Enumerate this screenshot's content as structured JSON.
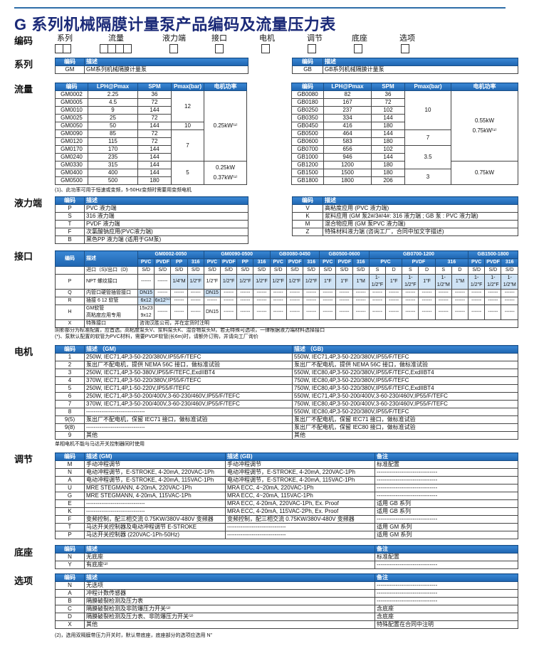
{
  "title": "G 系列机械隔膜计量泵产品编码及流量压力表",
  "code_row": {
    "label": "编码",
    "fields": [
      {
        "label": "系列",
        "boxes": 2
      },
      {
        "label": "流量",
        "boxes": 4
      },
      {
        "label": "液力端",
        "boxes": 1
      },
      {
        "label": "接口",
        "boxes": 1
      },
      {
        "label": "电机",
        "boxes": 1
      },
      {
        "label": "调节",
        "boxes": 1
      },
      {
        "label": "底座",
        "boxes": 1
      },
      {
        "label": "选项",
        "boxes": 1
      }
    ]
  },
  "series": {
    "label": "系列",
    "left": {
      "headers": [
        "编码",
        "描述"
      ],
      "rows": [
        [
          "GM",
          "GM系列机械隔膜计量泵"
        ]
      ]
    },
    "right": {
      "headers": [
        "编码",
        "描述"
      ],
      "rows": [
        [
          "GB",
          "GB系列机械隔膜计量泵"
        ]
      ]
    }
  },
  "flow": {
    "label": "流量",
    "headers": [
      "编码",
      "LPH@Pmax",
      "SPM",
      "Pmax(bar)",
      "电机功率"
    ],
    "gm": {
      "rows": [
        [
          "GM0002",
          "2.25",
          "36"
        ],
        [
          "GM0005",
          "4.5",
          "72"
        ],
        [
          "GM0010",
          "9",
          "144"
        ],
        [
          "GM0025",
          "25",
          "72"
        ],
        [
          "GM0050",
          "50",
          "144"
        ],
        [
          "GM0090",
          "85",
          "72"
        ],
        [
          "GM0120",
          "115",
          "72"
        ],
        [
          "GM0170",
          "170",
          "144"
        ],
        [
          "GM0240",
          "235",
          "144"
        ],
        [
          "GM0330",
          "315",
          "144"
        ],
        [
          "GM0400",
          "400",
          "144"
        ],
        [
          "GM0500",
          "500",
          "180"
        ]
      ],
      "pmax_groups": [
        {
          "value": "12",
          "span": 4
        },
        {
          "value": "10",
          "span": 1
        },
        {
          "value": "7",
          "span": 4
        },
        {
          "value": "5",
          "span": 3
        }
      ],
      "power_groups": [
        {
          "lines": [
            "0.25kW⁽¹⁾"
          ],
          "span": 9
        },
        {
          "lines": [
            "0.25kW",
            "0.37kW⁽¹⁾"
          ],
          "span": 3
        }
      ]
    },
    "gb": {
      "rows": [
        [
          "GB0080",
          "82",
          "36"
        ],
        [
          "GB0180",
          "167",
          "72"
        ],
        [
          "GB0250",
          "237",
          "102"
        ],
        [
          "GB0350",
          "334",
          "144"
        ],
        [
          "GB0450",
          "416",
          "180"
        ],
        [
          "GB0500",
          "464",
          "144"
        ],
        [
          "GB0600",
          "583",
          "180"
        ],
        [
          "GB0700",
          "656",
          "102"
        ],
        [
          "GB1000",
          "946",
          "144"
        ],
        [
          "GB1200",
          "1200",
          "180"
        ],
        [
          "GB1500",
          "1500",
          "180"
        ],
        [
          "GB1800",
          "1800",
          "206"
        ]
      ],
      "pmax_groups": [
        {
          "value": "10",
          "span": 5
        },
        {
          "value": "7",
          "span": 2
        },
        {
          "value": "3.5",
          "span": 3
        },
        {
          "value": "3",
          "span": 2
        }
      ],
      "power_groups": [
        {
          "lines": [
            "0.55kW",
            "0.75kW⁽¹⁾"
          ],
          "span": 9
        },
        {
          "lines": [
            "0.75kW"
          ],
          "span": 3
        }
      ]
    },
    "footnote": "(1)、此功率可用于恒速或变频，5-50Hz变频时需要用变频电机"
  },
  "liquid_end": {
    "label": "液力端",
    "left": {
      "headers": [
        "编码",
        "描述"
      ],
      "rows": [
        [
          "P",
          "PVC 液力端"
        ],
        [
          "S",
          "316 液力端"
        ],
        [
          "T",
          "PVDF 液力端"
        ],
        [
          "F",
          "次氯酸钠应用(PVC液力端)"
        ],
        [
          "B",
          "黑色PP 液力端 (适用于GM泵)"
        ]
      ]
    },
    "right": {
      "headers": [
        "编码",
        "描述"
      ],
      "rows": [
        [
          "V",
          "高粘度应用 (PVC 液力端)"
        ],
        [
          "K",
          "浆料应用 (GM 泵2#/3#/4#: 316 液力端 ; GB 泵 : PVC 液力端)"
        ],
        [
          "M",
          "混合物应用 (GM 泵PVC 液力端)"
        ],
        [
          "Z",
          "特殊材料液力端 (咨询工厂，合同中加文字描述)"
        ]
      ]
    }
  },
  "connection": {
    "label": "接口",
    "headers": [
      "编码",
      "描述"
    ],
    "groups": [
      {
        "name": "GM0002-0050",
        "materials": [
          {
            "name": "PVC",
            "span": 1
          },
          {
            "name": "PVDF",
            "span": 1
          },
          {
            "name": "PP",
            "span": 1
          },
          {
            "name": "316",
            "span": 1
          }
        ]
      },
      {
        "name": "GM0090-0500",
        "materials": [
          {
            "name": "PVC",
            "span": 1
          },
          {
            "name": "PVDF",
            "span": 1
          },
          {
            "name": "PP",
            "span": 1
          },
          {
            "name": "316",
            "span": 1
          }
        ]
      },
      {
        "name": "GB0080-0450",
        "materials": [
          {
            "name": "PVC",
            "span": 1
          },
          {
            "name": "PVDF",
            "span": 1
          },
          {
            "name": "316",
            "span": 1
          }
        ]
      },
      {
        "name": "GB0500-0600",
        "materials": [
          {
            "name": "PVC",
            "span": 1
          },
          {
            "name": "PVDF",
            "span": 1
          },
          {
            "name": "316",
            "span": 1
          }
        ]
      },
      {
        "name": "GB0700-1200",
        "materials": [
          {
            "name": "PVC",
            "span": 2
          },
          {
            "name": "PVDF",
            "span": 2
          },
          {
            "name": "316",
            "span": 2
          }
        ]
      },
      {
        "name": "GB1500-1800",
        "materials": [
          {
            "name": "PVC",
            "span": 1
          },
          {
            "name": "PVDF",
            "span": 1
          },
          {
            "name": "316",
            "span": 1
          }
        ]
      }
    ],
    "rows": [
      {
        "code": "",
        "desc": "进口（S)/出口（D)",
        "values": [
          "S/D",
          "S/D",
          "S/D",
          "S/D",
          "S/D",
          "S/D",
          "S/D",
          "S/D",
          "S/D",
          "S/D",
          "S/D",
          "S/D",
          "S/D",
          "S/D",
          "S",
          "D",
          "S",
          "D",
          "S",
          "D",
          "S/D",
          "S/D",
          "S/D"
        ],
        "standard": []
      },
      {
        "code": "P",
        "desc": "NPT 螺纹接口",
        "values": [
          "------",
          "------",
          "1/4\"M",
          "1/2\"F",
          "1/2\"F",
          "1/2\"F",
          "1/2\"F",
          "1/2\"F",
          "1/2\"F",
          "1/2\"F",
          "1/2\"F",
          "1\"F",
          "1\"F",
          "1\"M",
          "1-1/2\"F",
          "1\"F",
          "1-1/2\"F",
          "1\"F",
          "1-1/2\"M",
          "1\"M",
          "1-1/2\"F",
          "1-1/2\"F",
          "1-1/2\"M"
        ],
        "standard": [
          2,
          3,
          5,
          6,
          7,
          8,
          9,
          10,
          11,
          12,
          13,
          14,
          15,
          16,
          17,
          18,
          19,
          20,
          21,
          22
        ]
      },
      {
        "code": "Q",
        "desc": "内管口硬管插管接口",
        "values": [
          "DN15",
          "------",
          "------",
          "------",
          "DN15",
          "------",
          "------",
          "------",
          "------",
          "------",
          "------",
          "------",
          "------",
          "------",
          "------",
          "------",
          "------",
          "------",
          "------",
          "------",
          "------",
          "------",
          "------"
        ],
        "standard": [
          0,
          4
        ]
      },
      {
        "code": "R",
        "desc": "插接 6   12 软管",
        "values": [
          "6x12",
          "6x12⁽*⁾",
          "------",
          "------",
          "------",
          "------",
          "------",
          "------",
          "------",
          "------",
          "------",
          "------",
          "------",
          "------",
          "------",
          "------",
          "------",
          "------",
          "------",
          "------",
          "------",
          "------",
          "------"
        ],
        "standard": [
          0,
          1
        ]
      },
      {
        "code": "H",
        "desc": "GM软管\n高粘度应用专用",
        "values": [
          "15x23\n9x12",
          "------",
          "------",
          "------",
          "DN15",
          "------",
          "------",
          "------",
          "------",
          "------",
          "------",
          "------",
          "------",
          "------",
          "------",
          "------",
          "------",
          "------",
          "------",
          "------",
          "------",
          "------",
          "------"
        ],
        "standard": []
      },
      {
        "code": "X",
        "desc": "特殊接口",
        "span_text": "咨询汉胜公司，并在定货时注明",
        "standard": []
      }
    ],
    "note1": "阴影部分为标准配置，应首选。高粘度泵头V、浆料泵头K、混合物泵头M，若无特殊可选项，一律根据液力端材料选择接口",
    "note2": "(*)、泵默认配置的软管为PVC材料，需要PVDF软管(长6m)时，请额外订购，并请向工厂询价"
  },
  "motor": {
    "label": "电机",
    "headers": [
      "编码",
      "描述 （GM)",
      "描述 （GB)"
    ],
    "rows": [
      [
        "1",
        "250W, IEC71,4P,3-50-220/380V,IP55/F/TEFC",
        "550W, IEC71,4P,3-50-220/380V,IP55/F/TEFC"
      ],
      [
        "2",
        "泵出厂不配电机，提供 NEMA 56C 接口，做标准试验",
        "泵出厂不配电机，提供 NEMA 56C 接口，做标准试验"
      ],
      [
        "3",
        "250W, IEC71,4P,3-50-380V,IP55/F/TEFC,ExdIIBT4",
        "550W, IEC80,4P,3-50-220/380V,IP55/F/TEFC,ExdIIBT4"
      ],
      [
        "4",
        "370W, IEC71,4P,3-50-220/380V,IP55/F/TEFC",
        "750W, IEC80,4P,3-50-220/380V,IP55/F/TEFC"
      ],
      [
        "5",
        "250W, IEC71,4P,1-50-220V,IP55/F/TEFC",
        "750W, IEC80,4P,3-50-220/380V,IP55/F/TEFC,ExdIIBT4"
      ],
      [
        "6",
        "250W, IEC71,4P,3-50-200/400V,3-60-230/460V,IP55/F/TEFC",
        "550W, IEC71,4P,3-50-200/400V,3-60-230/460V,IP55/F/TEFC"
      ],
      [
        "7",
        "370W, IEC71,4P,3-50-200/400V,3-60-230/460V,IP55/F/TEFC",
        "750W, IEC80,4P,3-50-200/400V,3-60-230/460V,IP55/F/TEFC"
      ],
      [
        "8",
        "-------------------------------",
        "550W, IEC80,4P,3-50-220/380V,IP55/F/TEFC"
      ],
      [
        "9(5)",
        "泵出厂不配电机，保留 IEC71 接口，做标准试验",
        "泵出厂不配电机，保留 IEC71 接口，做标准试验"
      ],
      [
        "9(8)",
        "-------------------------------",
        "泵出厂不配电机，保留 IEC80 接口，做标准试验"
      ],
      [
        "9",
        "其他",
        "其他"
      ]
    ],
    "note": "单相电机不能与马达开关控制器同时使用"
  },
  "regulation": {
    "label": "调节",
    "headers": [
      "编码",
      "描述 (GM)",
      "描述 (GB)",
      "备注"
    ],
    "rows": [
      [
        "M",
        "手动冲程调节",
        "手动冲程调节",
        "标准配置"
      ],
      [
        "N",
        "电动冲程调节，E-STROKE, 4-20mA, 220VAC-1Ph",
        "电动冲程调节，E-STROKE, 4-20mA, 220VAC-1Ph",
        "--------------------------------"
      ],
      [
        "A",
        "电动冲程调节，E-STROKE, 4-20mA, 115VAC-1Ph",
        "电动冲程调节，E-STROKE, 4-20mA, 115VAC-1Ph",
        "--------------------------------"
      ],
      [
        "U",
        "MRE STEGMANN, 4-20mA, 220VAC-1Ph",
        "MRA ECC, 4~20mA, 220VAC-1Ph",
        "--------------------------------"
      ],
      [
        "G",
        "MRE STEGMANN, 4-20mA, 115VAC-1Ph",
        "MRA ECC, 4~20mA, 115VAC-1Ph",
        "--------------------------------"
      ],
      [
        "E",
        "-------------------------------",
        "MRA ECC, 4-20mA, 220VAC-1Ph, Ex. Proof",
        "适用 GB 系列"
      ],
      [
        "K",
        "-------------------------------",
        "MRA ECC, 4-20mA, 115VAC-2Ph, Ex. Proof",
        "适用 GB 系列"
      ],
      [
        "F",
        "变频控制，配三相交流 0.75KW/380V-480V 变频器",
        "变频控制，配三相交流 0.75KW/380V-480V 变频器",
        "--------------------------------"
      ],
      [
        "T",
        "马达开关控制器及电动冲程调节 E-STROKE",
        "-------------------------------",
        "适用 GM 系列"
      ],
      [
        "P",
        "马达开关控制器  (220VAC-1Ph-50Hz)",
        "-------------------------------",
        "适用 GM 系列"
      ]
    ]
  },
  "base": {
    "label": "底座",
    "headers": [
      "编码",
      "描述",
      "备注"
    ],
    "rows": [
      [
        "N",
        "无底座",
        "标准配置"
      ],
      [
        "Y",
        "有底座⁽²⁾",
        "--------------------------------"
      ]
    ]
  },
  "options": {
    "label": "选项",
    "headers": [
      "编码",
      "描述",
      "备注"
    ],
    "rows": [
      [
        "N",
        "无选项",
        "--------------------------------"
      ],
      [
        "A",
        "冲程计数传感器",
        "--------------------------------"
      ],
      [
        "B",
        "隔膜破裂检测及压力表",
        "--------------------------------"
      ],
      [
        "C",
        "隔膜破裂检测及非防爆压力开关⁽²⁾",
        "含底座"
      ],
      [
        "D",
        "隔膜破裂检测及压力表、非防爆压力开关⁽²⁾",
        "含底座"
      ],
      [
        "X",
        "其他",
        "特殊配置在合同中注明"
      ]
    ],
    "footnote": "(2)，选用双隔膜带压力开关时，默认带底座，底座部分的选项应选用 N”"
  },
  "colors": {
    "header_blue": "#1e65b0",
    "title_navy": "#1b2a78",
    "standard_shade": "#cfe3f5"
  }
}
